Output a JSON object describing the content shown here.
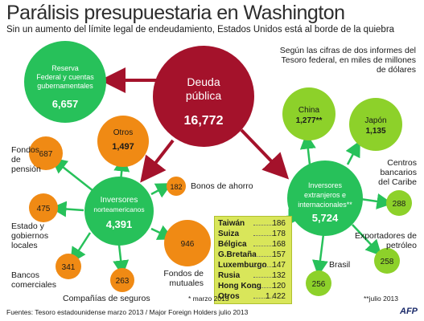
{
  "header": {
    "title": "Parálisis presupuestaria en Washington",
    "subtitle": "Sin un aumento del límite legal de endeudamiento, Estados Unidos está al borde de la quiebra",
    "note": "Según las cifras de dos informes del Tesoro federal, en miles de millones de dólares"
  },
  "nodes": {
    "debt": {
      "label": "Deuda pública",
      "value": "16,772",
      "color": "#a4122b"
    },
    "fed": {
      "label": "Reserva Federal y cuentas gubernamentales",
      "value": "6,657",
      "color": "#27c15a"
    },
    "domestic": {
      "label": "Inversores norteamericanos",
      "value": "4,391",
      "color": "#27c15a"
    },
    "foreign": {
      "label": "Inversores extranjeros e internacionales**",
      "value": "5,724",
      "color": "#27c15a"
    },
    "otros": {
      "label": "Otros",
      "value": "1,497",
      "color": "#f08a14"
    },
    "pension": {
      "label": "Fondos de pensión",
      "value": "687"
    },
    "ahorro": {
      "label": "Bonos de ahorro",
      "value": "182"
    },
    "estado": {
      "label": "Estado y gobiernos locales",
      "value": "475"
    },
    "bancos": {
      "label": "Bancos comerciales",
      "value": "341"
    },
    "seguros": {
      "label": "Compañías de seguros",
      "value": "263"
    },
    "mutuales": {
      "label": "Fondos de mutuales",
      "value": "946"
    },
    "china": {
      "label": "China",
      "value": "1,277**",
      "color": "#8dd12a"
    },
    "japon": {
      "label": "Japón",
      "value": "1,135",
      "color": "#8dd12a"
    },
    "caribe": {
      "label": "Centros bancarios del Caribe",
      "value": "288"
    },
    "petroleo": {
      "label": "Exportadores de petróleo",
      "value": "258"
    },
    "brasil": {
      "label": "Brasil",
      "value": "256"
    }
  },
  "countries": [
    {
      "name": "Taiwán",
      "value": "186"
    },
    {
      "name": "Suiza",
      "value": "178"
    },
    {
      "name": "Bélgica",
      "value": "168"
    },
    {
      "name": "G.Bretaña",
      "value": "157"
    },
    {
      "name": "Luxemburgo",
      "value": "147"
    },
    {
      "name": "Rusia",
      "value": "132"
    },
    {
      "name": "Hong Kong",
      "value": "120"
    },
    {
      "name": "Otros",
      "value": "1 422"
    }
  ],
  "footnotes": {
    "marzo": "* marzo 2013",
    "julio": "**julio 2013",
    "sources": "Fuentes: Tesoro estadounidense marzo 2013 / Major Foreign Holders julio 2013",
    "agency": "AFP"
  },
  "colors": {
    "orange": "#f08a14",
    "light_green": "#8dd12a",
    "green": "#27c15a",
    "arrow_red": "#a4122b",
    "arrow_green": "#27c15a"
  }
}
